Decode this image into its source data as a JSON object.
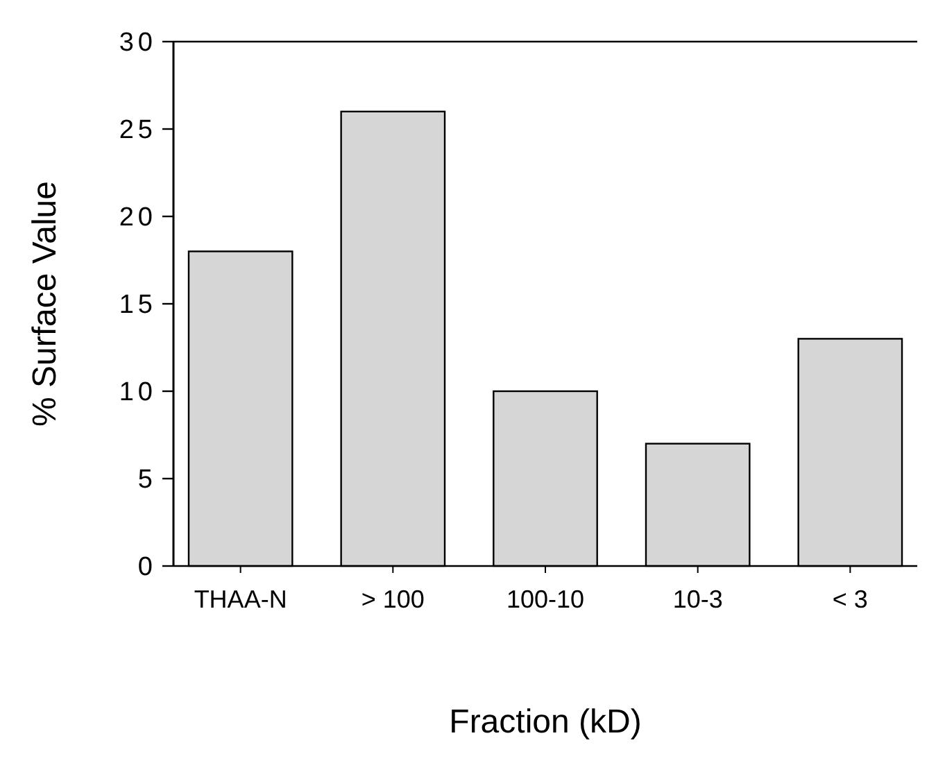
{
  "chart_data": {
    "type": "bar",
    "xlabel": "Fraction (kD)",
    "ylabel": "% Surface Value",
    "categories": [
      "THAA-N",
      "> 100",
      "100-10",
      "10-3",
      "< 3"
    ],
    "values": [
      18,
      26,
      10,
      7,
      13
    ],
    "color": "#d6d6d6",
    "ylim": [
      0,
      30
    ],
    "yticks": [
      0,
      5,
      10,
      15,
      20,
      25,
      30
    ],
    "grid": false
  }
}
